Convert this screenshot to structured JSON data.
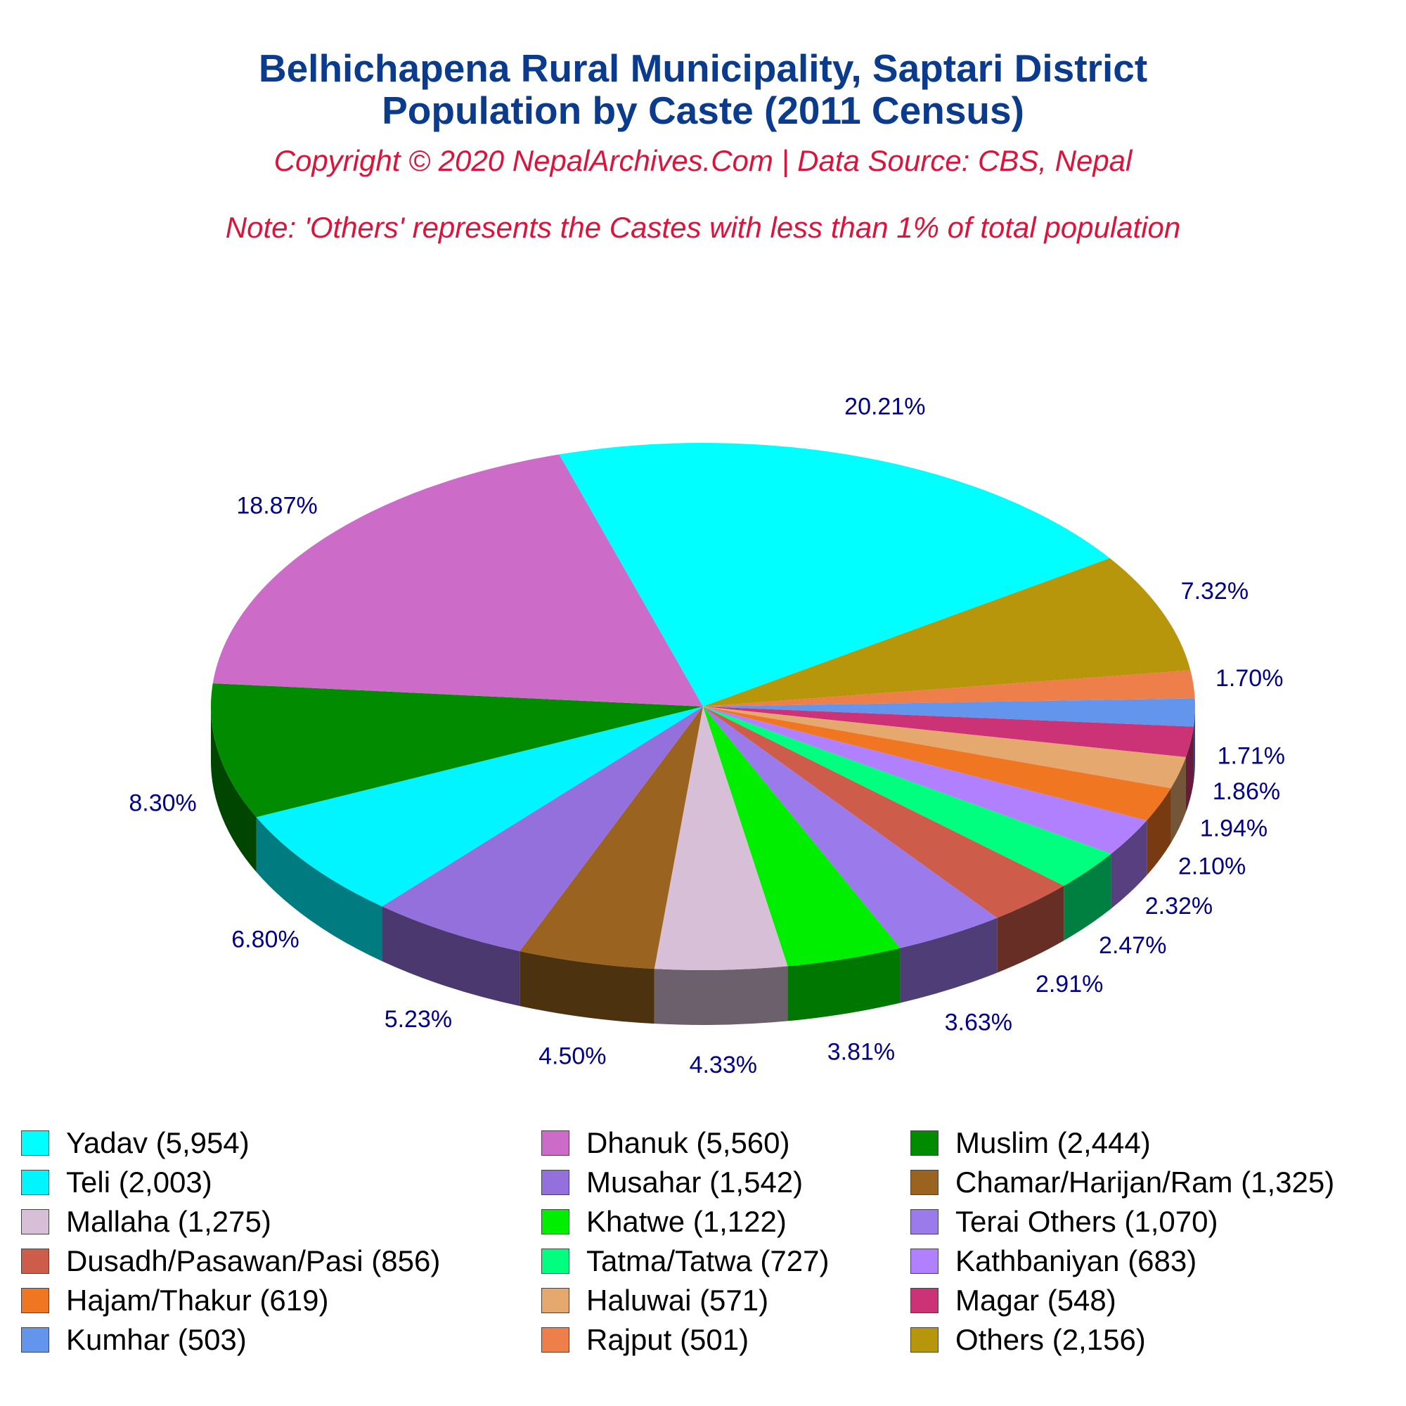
{
  "header": {
    "title_line1": "Belhichapena Rural Municipality, Saptari District",
    "title_line2": "Population by Caste (2011 Census)",
    "copyright": "Copyright © 2020 NepalArchives.Com | Data Source: CBS, Nepal",
    "note": "Note: 'Others' represents the Castes with less than 1% of total population"
  },
  "chart_data": {
    "type": "pie",
    "style": "3d-tilted",
    "legend_position": "bottom",
    "slices": [
      {
        "name": "Yadav",
        "value": 5954,
        "label": "Yadav (5,954)",
        "percent": "20.21%",
        "color": "#00ffff"
      },
      {
        "name": "Others",
        "value": 2156,
        "label": "Others (2,156)",
        "percent": "7.32%",
        "color": "#b8960c"
      },
      {
        "name": "Rajput",
        "value": 501,
        "label": "Rajput (501)",
        "percent": "1.70%",
        "color": "#ee7e4a"
      },
      {
        "name": "Kumhar",
        "value": 503,
        "label": "Kumhar (503)",
        "percent": "1.71%",
        "color": "#6495ed"
      },
      {
        "name": "Magar",
        "value": 548,
        "label": "Magar (548)",
        "percent": "1.86%",
        "color": "#cc3377"
      },
      {
        "name": "Haluwai",
        "value": 571,
        "label": "Haluwai (571)",
        "percent": "1.94%",
        "color": "#e5a96f"
      },
      {
        "name": "Hajam/Thakur",
        "value": 619,
        "label": "Hajam/Thakur (619)",
        "percent": "2.10%",
        "color": "#f07622"
      },
      {
        "name": "Kathbaniyan",
        "value": 683,
        "label": "Kathbaniyan (683)",
        "percent": "2.32%",
        "color": "#b080ff"
      },
      {
        "name": "Tatma/Tatwa",
        "value": 727,
        "label": "Tatma/Tatwa (727)",
        "percent": "2.47%",
        "color": "#00ff7f"
      },
      {
        "name": "Dusadh/Pasawan/Pasi",
        "value": 856,
        "label": "Dusadh/Pasawan/Pasi (856)",
        "percent": "2.91%",
        "color": "#cd5c4a"
      },
      {
        "name": "Terai Others",
        "value": 1070,
        "label": "Terai Others (1,070)",
        "percent": "3.63%",
        "color": "#9b7aeb"
      },
      {
        "name": "Khatwe",
        "value": 1122,
        "label": "Khatwe (1,122)",
        "percent": "3.81%",
        "color": "#00ee00"
      },
      {
        "name": "Mallaha",
        "value": 1275,
        "label": "Mallaha (1,275)",
        "percent": "4.33%",
        "color": "#d8bfd8"
      },
      {
        "name": "Chamar/Harijan/Ram",
        "value": 1325,
        "label": "Chamar/Harijan/Ram (1,325)",
        "percent": "4.50%",
        "color": "#9a6420"
      },
      {
        "name": "Musahar",
        "value": 1542,
        "label": "Musahar (1,542)",
        "percent": "5.23%",
        "color": "#9370db"
      },
      {
        "name": "Teli",
        "value": 2003,
        "label": "Teli (2,003)",
        "percent": "6.80%",
        "color": "#00f5ff"
      },
      {
        "name": "Muslim",
        "value": 2444,
        "label": "Muslim (2,444)",
        "percent": "8.30%",
        "color": "#008b00"
      },
      {
        "name": "Dhanuk",
        "value": 5560,
        "label": "Dhanuk (5,560)",
        "percent": "18.87%",
        "color": "#cc6bc8"
      }
    ],
    "legend": [
      "Yadav (5,954)",
      "Dhanuk (5,560)",
      "Muslim (2,444)",
      "Teli (2,003)",
      "Musahar (1,542)",
      "Chamar/Harijan/Ram (1,325)",
      "Mallaha (1,275)",
      "Khatwe (1,122)",
      "Terai Others (1,070)",
      "Dusadh/Pasawan/Pasi (856)",
      "Tatma/Tatwa (727)",
      "Kathbaniyan (683)",
      "Hajam/Thakur (619)",
      "Haluwai (571)",
      "Magar (548)",
      "Kumhar (503)",
      "Rajput (501)",
      "Others (2,156)"
    ]
  }
}
